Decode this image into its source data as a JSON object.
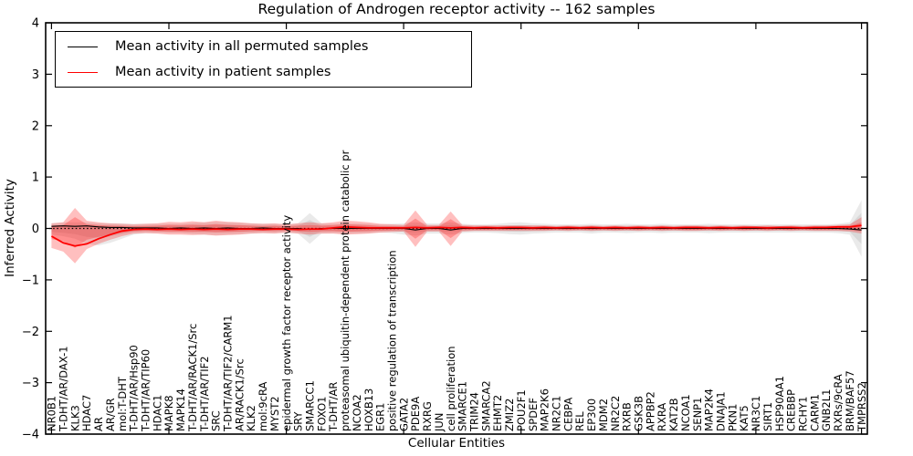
{
  "chart_data": {
    "type": "line",
    "title": "Regulation of Androgen receptor activity -- 162 samples",
    "xlabel": "Cellular Entities",
    "ylabel": "Inferred Activity",
    "ylim": [
      -4,
      4
    ],
    "yticks": [
      4,
      3,
      2,
      1,
      0,
      -1,
      -2,
      -3,
      -4
    ],
    "grid": false,
    "legend_position": "upper left",
    "baseline": 0,
    "xtick_marks_at_indices": [
      0,
      10,
      20,
      30,
      40,
      50,
      60,
      69
    ],
    "categories": [
      "NR0B1",
      "T-DHT/AR/DAX-1",
      "KLK3",
      "HDAC7",
      "AR",
      "AR/GR",
      "mol:T-DHT",
      "T-DHT/AR/Hsp90",
      "T-DHT/AR/TIP60",
      "HDAC1",
      "MAPK8",
      "MAPK14",
      "T-DHT/AR/RACK1/Src",
      "T-DHT/AR/TIF2",
      "SRC",
      "T-DHT/AR/TIF2/CARM1",
      "AR/RACK1/Src",
      "KLK2",
      "mol:9cRA",
      "MYST2",
      "epidermal growth factor receptor activity",
      "SRY",
      "SMARCC1",
      "FOXO1",
      "T-DHT/AR",
      "proteasomal ubiquitin-dependent protein catabolic pr",
      "NCOA2",
      "HOXB13",
      "EGR1",
      "positive regulation of transcription",
      "GATA2",
      "PDE9A",
      "RXRG",
      "JUN",
      "cell proliferation",
      "SMARCE1",
      "TRIM24",
      "SMARCA2",
      "EHMT2",
      "ZMIZ2",
      "POU2F1",
      "SPDEF",
      "MAP2K6",
      "NR2C1",
      "CEBPA",
      "REL",
      "EP300",
      "MDM2",
      "NR2C2",
      "RXRB",
      "GSK3B",
      "APPBP2",
      "RXRA",
      "KAT2B",
      "NCOA1",
      "SENP1",
      "MAP2K4",
      "DNAJA1",
      "PKN1",
      "KAT5",
      "NR3C1",
      "SIRT1",
      "HSP90AA1",
      "CREBBP",
      "RCHY1",
      "CARM1",
      "GNB2L1",
      "RXRs/9cRA",
      "BRM/BAF57",
      "TMPRSS2"
    ],
    "series": [
      {
        "name": "Mean activity in all permuted samples",
        "color": "#000000",
        "style": "solid",
        "values": [
          0.04,
          0.05,
          0.04,
          0.05,
          0.03,
          0.02,
          0.02,
          0.01,
          0.01,
          0.01,
          0.0,
          0.01,
          0.0,
          0.01,
          0.0,
          0.01,
          0.0,
          0.0,
          0.01,
          0.0,
          0.0,
          0.0,
          -0.02,
          0.0,
          0.0,
          0.0,
          0.0,
          0.0,
          0.0,
          0.0,
          0.0,
          -0.03,
          0.0,
          0.0,
          -0.03,
          0.0,
          0.0,
          0.0,
          0.0,
          0.0,
          0.0,
          0.0,
          0.0,
          0.0,
          0.0,
          0.0,
          0.0,
          0.0,
          0.0,
          0.0,
          0.0,
          0.0,
          0.0,
          0.0,
          0.0,
          0.0,
          0.0,
          0.0,
          0.0,
          0.0,
          0.0,
          0.0,
          0.0,
          0.0,
          0.0,
          0.0,
          0.0,
          0.0,
          -0.01,
          -0.03
        ]
      },
      {
        "name": "Mean activity in patient samples",
        "color": "#ff0000",
        "style": "solid",
        "values": [
          -0.15,
          -0.28,
          -0.34,
          -0.3,
          -0.2,
          -0.12,
          -0.05,
          -0.02,
          -0.01,
          -0.02,
          -0.01,
          -0.02,
          -0.01,
          -0.02,
          -0.01,
          -0.02,
          -0.01,
          -0.01,
          -0.02,
          -0.01,
          -0.01,
          -0.02,
          -0.01,
          -0.01,
          0.01,
          0.03,
          0.02,
          0.01,
          0.01,
          0.01,
          0.01,
          0.02,
          0.01,
          0.02,
          0.01,
          0.02,
          0.01,
          0.02,
          0.01,
          0.02,
          0.02,
          0.01,
          0.02,
          0.01,
          0.02,
          0.01,
          0.02,
          0.01,
          0.02,
          0.01,
          0.02,
          0.01,
          0.02,
          0.01,
          0.02,
          0.02,
          0.01,
          0.02,
          0.01,
          0.02,
          0.02,
          0.01,
          0.02,
          0.02,
          0.01,
          0.02,
          0.02,
          0.03,
          0.03,
          0.06
        ]
      }
    ],
    "bands": [
      {
        "name": "permuted samples range",
        "color": "#7f7f7f",
        "upper": [
          0.1,
          0.12,
          0.12,
          0.12,
          0.1,
          0.1,
          0.1,
          0.09,
          0.09,
          0.09,
          0.09,
          0.09,
          0.11,
          0.12,
          0.13,
          0.12,
          0.11,
          0.1,
          0.09,
          0.09,
          0.08,
          0.1,
          0.3,
          0.1,
          0.09,
          0.1,
          0.1,
          0.09,
          0.08,
          0.09,
          0.1,
          0.12,
          0.1,
          0.1,
          0.12,
          0.09,
          0.08,
          0.08,
          0.09,
          0.11,
          0.12,
          0.1,
          0.09,
          0.08,
          0.08,
          0.08,
          0.09,
          0.08,
          0.08,
          0.09,
          0.08,
          0.08,
          0.09,
          0.08,
          0.08,
          0.08,
          0.09,
          0.08,
          0.08,
          0.08,
          0.08,
          0.08,
          0.08,
          0.08,
          0.08,
          0.08,
          0.08,
          0.09,
          0.12,
          0.55
        ],
        "lower": [
          -0.12,
          -0.15,
          -0.2,
          -0.3,
          -0.33,
          -0.28,
          -0.2,
          -0.12,
          -0.09,
          -0.09,
          -0.09,
          -0.09,
          -0.11,
          -0.12,
          -0.13,
          -0.12,
          -0.11,
          -0.1,
          -0.09,
          -0.09,
          -0.08,
          -0.1,
          -0.3,
          -0.1,
          -0.09,
          -0.1,
          -0.1,
          -0.09,
          -0.08,
          -0.09,
          -0.12,
          -0.14,
          -0.1,
          -0.1,
          -0.12,
          -0.09,
          -0.08,
          -0.08,
          -0.09,
          -0.11,
          -0.12,
          -0.1,
          -0.09,
          -0.08,
          -0.08,
          -0.08,
          -0.1,
          -0.08,
          -0.08,
          -0.09,
          -0.08,
          -0.08,
          -0.09,
          -0.08,
          -0.08,
          -0.08,
          -0.09,
          -0.08,
          -0.08,
          -0.08,
          -0.08,
          -0.08,
          -0.08,
          -0.08,
          -0.08,
          -0.08,
          -0.08,
          -0.09,
          -0.12,
          -0.55
        ]
      },
      {
        "name": "patient samples range",
        "color": "#ff0000",
        "upper": [
          0.1,
          0.12,
          0.4,
          0.15,
          0.12,
          0.1,
          0.09,
          0.08,
          0.09,
          0.1,
          0.13,
          0.12,
          0.14,
          0.12,
          0.15,
          0.13,
          0.12,
          0.1,
          0.09,
          0.1,
          0.08,
          0.1,
          0.12,
          0.1,
          0.12,
          0.15,
          0.14,
          0.12,
          0.09,
          0.08,
          0.07,
          0.35,
          0.07,
          0.07,
          0.33,
          0.07,
          0.06,
          0.06,
          0.06,
          0.06,
          0.06,
          0.06,
          0.06,
          0.05,
          0.06,
          0.05,
          0.06,
          0.05,
          0.06,
          0.05,
          0.06,
          0.05,
          0.06,
          0.05,
          0.06,
          0.06,
          0.05,
          0.06,
          0.05,
          0.06,
          0.05,
          0.06,
          0.05,
          0.06,
          0.05,
          0.06,
          0.06,
          0.07,
          0.08,
          0.22
        ],
        "lower": [
          -0.38,
          -0.45,
          -0.68,
          -0.4,
          -0.3,
          -0.22,
          -0.15,
          -0.1,
          -0.09,
          -0.1,
          -0.12,
          -0.12,
          -0.13,
          -0.12,
          -0.14,
          -0.13,
          -0.12,
          -0.1,
          -0.09,
          -0.1,
          -0.08,
          -0.1,
          -0.12,
          -0.1,
          -0.1,
          -0.12,
          -0.11,
          -0.1,
          -0.08,
          -0.07,
          -0.06,
          -0.36,
          -0.06,
          -0.06,
          -0.34,
          -0.06,
          -0.05,
          -0.05,
          -0.05,
          -0.05,
          -0.05,
          -0.05,
          -0.05,
          -0.04,
          -0.05,
          -0.04,
          -0.05,
          -0.04,
          -0.05,
          -0.04,
          -0.05,
          -0.04,
          -0.05,
          -0.04,
          -0.05,
          -0.05,
          -0.04,
          -0.05,
          -0.04,
          -0.05,
          -0.04,
          -0.05,
          -0.04,
          -0.05,
          -0.04,
          -0.05,
          -0.05,
          -0.05,
          -0.06,
          -0.1
        ]
      }
    ]
  },
  "legend": {
    "entries": [
      {
        "label": "Mean activity in all permuted samples",
        "color": "#000000"
      },
      {
        "label": "Mean activity in patient samples",
        "color": "#ff0000"
      }
    ]
  }
}
